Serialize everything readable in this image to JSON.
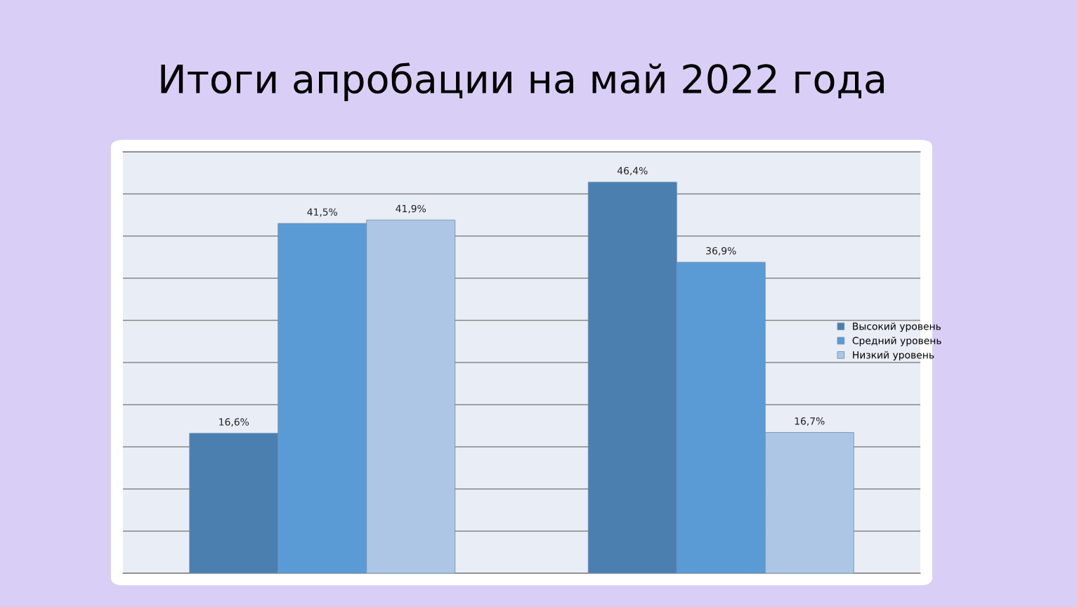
{
  "chart_data": {
    "type": "bar",
    "title": "Итоги апробации на май 2022 года",
    "categories": [
      null,
      null
    ],
    "series": [
      {
        "name": "Высокий уровень",
        "color": "#4a7fb0",
        "values": [
          16.6,
          46.4
        ],
        "value_labels": [
          "16,6%",
          "46,4%"
        ]
      },
      {
        "name": "Средний уровень",
        "color": "#5b9bd5",
        "values": [
          41.5,
          36.9
        ],
        "value_labels": [
          "41,5%",
          "36,9%"
        ]
      },
      {
        "name": "Низкий уровень",
        "color": "#adc6e5",
        "values": [
          41.9,
          16.7
        ],
        "value_labels": [
          "41,9%",
          "16,7%"
        ]
      }
    ],
    "ylim": [
      0,
      50
    ],
    "yticks": [
      {
        "value": 0,
        "label": null
      },
      {
        "value": 5,
        "label": null
      },
      {
        "value": 10,
        "label": null
      },
      {
        "value": 15,
        "label": null
      },
      {
        "value": 20,
        "label": null
      },
      {
        "value": 25,
        "label": null
      },
      {
        "value": 30,
        "label": null
      },
      {
        "value": 35,
        "label": null
      },
      {
        "value": 40,
        "label": null
      },
      {
        "value": 45,
        "label": null
      },
      {
        "value": 50,
        "label": null
      }
    ],
    "grid": "y",
    "legend": "right"
  }
}
